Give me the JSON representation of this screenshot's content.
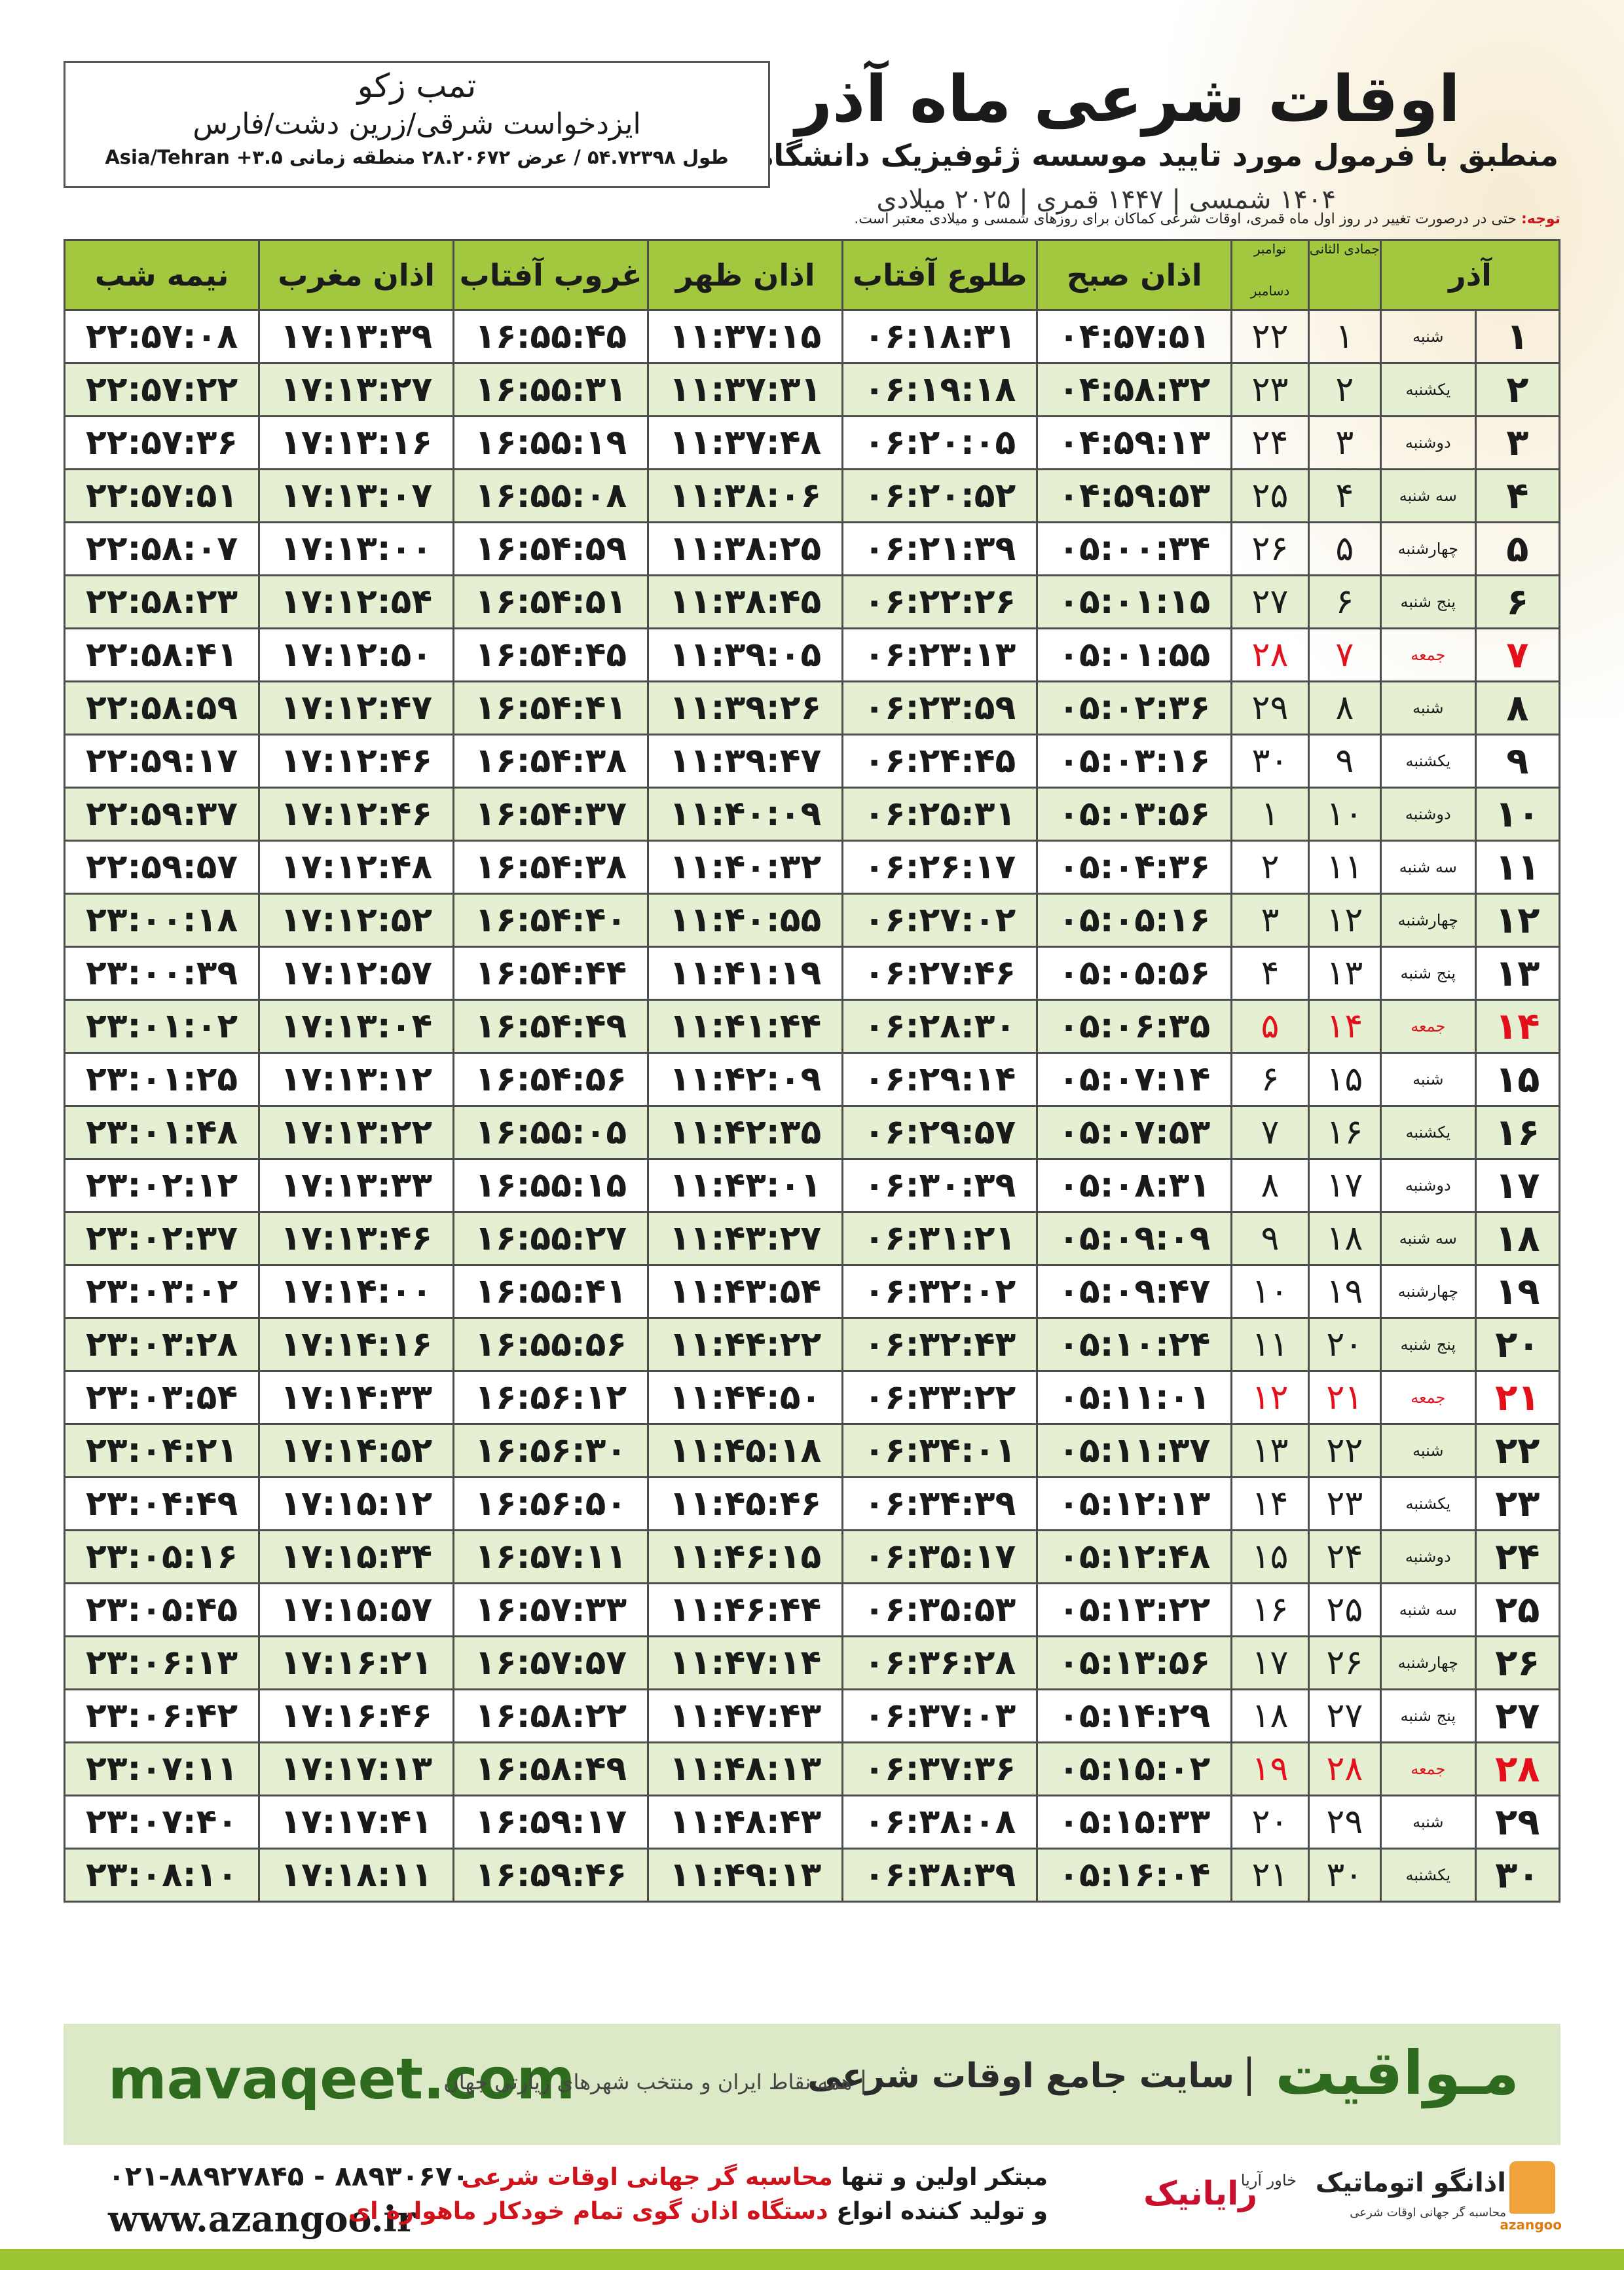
{
  "header": {
    "title": "اوقات شرعی ماه آذر",
    "subtitle": "منطبق با فرمول مورد تایید موسسه ژئوفیزیک دانشگاه تهران",
    "dates": "۱۴۰۴ شمسی | ۱۴۴۷ قمری | ۲۰۲۵ میلادی"
  },
  "location": {
    "name": "تمب زکو",
    "region": "ایزدخواست شرقی/زرین دشت/فارس",
    "coords": "طول ۵۴.۷۲۳۹۸ / عرض ۲۸.۲۰۶۷۲ منطقه زمانی ۳.۵+ Asia/Tehran"
  },
  "note": {
    "label": "توجه:",
    "text": "حتی در درصورت تغییر در روز اول ماه قمری، اوقات شرعی کماکان برای روزهای شمسی و میلادی معتبر است."
  },
  "table": {
    "columns": {
      "azar": "آذر",
      "jumada": "جمادی الثانی",
      "november": "نوامبر",
      "december": "دسامبر",
      "times": [
        "اذان صبح",
        "طلوع آفتاب",
        "اذان ظهر",
        "غروب آفتاب",
        "اذان مغرب",
        "نیمه شب"
      ]
    },
    "rows": [
      [
        "۱",
        "شنبه",
        "۱",
        "۲۲",
        "۰۴:۵۷:۵۱",
        "۰۶:۱۸:۳۱",
        "۱۱:۳۷:۱۵",
        "۱۶:۵۵:۴۵",
        "۱۷:۱۳:۳۹",
        "۲۲:۵۷:۰۸"
      ],
      [
        "۲",
        "یکشنبه",
        "۲",
        "۲۳",
        "۰۴:۵۸:۳۲",
        "۰۶:۱۹:۱۸",
        "۱۱:۳۷:۳۱",
        "۱۶:۵۵:۳۱",
        "۱۷:۱۳:۲۷",
        "۲۲:۵۷:۲۲"
      ],
      [
        "۳",
        "دوشنبه",
        "۳",
        "۲۴",
        "۰۴:۵۹:۱۳",
        "۰۶:۲۰:۰۵",
        "۱۱:۳۷:۴۸",
        "۱۶:۵۵:۱۹",
        "۱۷:۱۳:۱۶",
        "۲۲:۵۷:۳۶"
      ],
      [
        "۴",
        "سه شنبه",
        "۴",
        "۲۵",
        "۰۴:۵۹:۵۳",
        "۰۶:۲۰:۵۲",
        "۱۱:۳۸:۰۶",
        "۱۶:۵۵:۰۸",
        "۱۷:۱۳:۰۷",
        "۲۲:۵۷:۵۱"
      ],
      [
        "۵",
        "چهارشنبه",
        "۵",
        "۲۶",
        "۰۵:۰۰:۳۴",
        "۰۶:۲۱:۳۹",
        "۱۱:۳۸:۲۵",
        "۱۶:۵۴:۵۹",
        "۱۷:۱۳:۰۰",
        "۲۲:۵۸:۰۷"
      ],
      [
        "۶",
        "پنج شنبه",
        "۶",
        "۲۷",
        "۰۵:۰۱:۱۵",
        "۰۶:۲۲:۲۶",
        "۱۱:۳۸:۴۵",
        "۱۶:۵۴:۵۱",
        "۱۷:۱۲:۵۴",
        "۲۲:۵۸:۲۳"
      ],
      [
        "۷",
        "جمعه",
        "۷",
        "۲۸",
        "۰۵:۰۱:۵۵",
        "۰۶:۲۳:۱۳",
        "۱۱:۳۹:۰۵",
        "۱۶:۵۴:۴۵",
        "۱۷:۱۲:۵۰",
        "۲۲:۵۸:۴۱"
      ],
      [
        "۸",
        "شنبه",
        "۸",
        "۲۹",
        "۰۵:۰۲:۳۶",
        "۰۶:۲۳:۵۹",
        "۱۱:۳۹:۲۶",
        "۱۶:۵۴:۴۱",
        "۱۷:۱۲:۴۷",
        "۲۲:۵۸:۵۹"
      ],
      [
        "۹",
        "یکشنبه",
        "۹",
        "۳۰",
        "۰۵:۰۳:۱۶",
        "۰۶:۲۴:۴۵",
        "۱۱:۳۹:۴۷",
        "۱۶:۵۴:۳۸",
        "۱۷:۱۲:۴۶",
        "۲۲:۵۹:۱۷"
      ],
      [
        "۱۰",
        "دوشنبه",
        "۱۰",
        "۱",
        "۰۵:۰۳:۵۶",
        "۰۶:۲۵:۳۱",
        "۱۱:۴۰:۰۹",
        "۱۶:۵۴:۳۷",
        "۱۷:۱۲:۴۶",
        "۲۲:۵۹:۳۷"
      ],
      [
        "۱۱",
        "سه شنبه",
        "۱۱",
        "۲",
        "۰۵:۰۴:۳۶",
        "۰۶:۲۶:۱۷",
        "۱۱:۴۰:۳۲",
        "۱۶:۵۴:۳۸",
        "۱۷:۱۲:۴۸",
        "۲۲:۵۹:۵۷"
      ],
      [
        "۱۲",
        "چهارشنبه",
        "۱۲",
        "۳",
        "۰۵:۰۵:۱۶",
        "۰۶:۲۷:۰۲",
        "۱۱:۴۰:۵۵",
        "۱۶:۵۴:۴۰",
        "۱۷:۱۲:۵۲",
        "۲۳:۰۰:۱۸"
      ],
      [
        "۱۳",
        "پنج شنبه",
        "۱۳",
        "۴",
        "۰۵:۰۵:۵۶",
        "۰۶:۲۷:۴۶",
        "۱۱:۴۱:۱۹",
        "۱۶:۵۴:۴۴",
        "۱۷:۱۲:۵۷",
        "۲۳:۰۰:۳۹"
      ],
      [
        "۱۴",
        "جمعه",
        "۱۴",
        "۵",
        "۰۵:۰۶:۳۵",
        "۰۶:۲۸:۳۰",
        "۱۱:۴۱:۴۴",
        "۱۶:۵۴:۴۹",
        "۱۷:۱۳:۰۴",
        "۲۳:۰۱:۰۲"
      ],
      [
        "۱۵",
        "شنبه",
        "۱۵",
        "۶",
        "۰۵:۰۷:۱۴",
        "۰۶:۲۹:۱۴",
        "۱۱:۴۲:۰۹",
        "۱۶:۵۴:۵۶",
        "۱۷:۱۳:۱۲",
        "۲۳:۰۱:۲۵"
      ],
      [
        "۱۶",
        "یکشنبه",
        "۱۶",
        "۷",
        "۰۵:۰۷:۵۳",
        "۰۶:۲۹:۵۷",
        "۱۱:۴۲:۳۵",
        "۱۶:۵۵:۰۵",
        "۱۷:۱۳:۲۲",
        "۲۳:۰۱:۴۸"
      ],
      [
        "۱۷",
        "دوشنبه",
        "۱۷",
        "۸",
        "۰۵:۰۸:۳۱",
        "۰۶:۳۰:۳۹",
        "۱۱:۴۳:۰۱",
        "۱۶:۵۵:۱۵",
        "۱۷:۱۳:۳۳",
        "۲۳:۰۲:۱۲"
      ],
      [
        "۱۸",
        "سه شنبه",
        "۱۸",
        "۹",
        "۰۵:۰۹:۰۹",
        "۰۶:۳۱:۲۱",
        "۱۱:۴۳:۲۷",
        "۱۶:۵۵:۲۷",
        "۱۷:۱۳:۴۶",
        "۲۳:۰۲:۳۷"
      ],
      [
        "۱۹",
        "چهارشنبه",
        "۱۹",
        "۱۰",
        "۰۵:۰۹:۴۷",
        "۰۶:۳۲:۰۲",
        "۱۱:۴۳:۵۴",
        "۱۶:۵۵:۴۱",
        "۱۷:۱۴:۰۰",
        "۲۳:۰۳:۰۲"
      ],
      [
        "۲۰",
        "پنج شنبه",
        "۲۰",
        "۱۱",
        "۰۵:۱۰:۲۴",
        "۰۶:۳۲:۴۳",
        "۱۱:۴۴:۲۲",
        "۱۶:۵۵:۵۶",
        "۱۷:۱۴:۱۶",
        "۲۳:۰۳:۲۸"
      ],
      [
        "۲۱",
        "جمعه",
        "۲۱",
        "۱۲",
        "۰۵:۱۱:۰۱",
        "۰۶:۳۳:۲۲",
        "۱۱:۴۴:۵۰",
        "۱۶:۵۶:۱۲",
        "۱۷:۱۴:۳۳",
        "۲۳:۰۳:۵۴"
      ],
      [
        "۲۲",
        "شنبه",
        "۲۲",
        "۱۳",
        "۰۵:۱۱:۳۷",
        "۰۶:۳۴:۰۱",
        "۱۱:۴۵:۱۸",
        "۱۶:۵۶:۳۰",
        "۱۷:۱۴:۵۲",
        "۲۳:۰۴:۲۱"
      ],
      [
        "۲۳",
        "یکشنبه",
        "۲۳",
        "۱۴",
        "۰۵:۱۲:۱۳",
        "۰۶:۳۴:۳۹",
        "۱۱:۴۵:۴۶",
        "۱۶:۵۶:۵۰",
        "۱۷:۱۵:۱۲",
        "۲۳:۰۴:۴۹"
      ],
      [
        "۲۴",
        "دوشنبه",
        "۲۴",
        "۱۵",
        "۰۵:۱۲:۴۸",
        "۰۶:۳۵:۱۷",
        "۱۱:۴۶:۱۵",
        "۱۶:۵۷:۱۱",
        "۱۷:۱۵:۳۴",
        "۲۳:۰۵:۱۶"
      ],
      [
        "۲۵",
        "سه شنبه",
        "۲۵",
        "۱۶",
        "۰۵:۱۳:۲۲",
        "۰۶:۳۵:۵۳",
        "۱۱:۴۶:۴۴",
        "۱۶:۵۷:۳۳",
        "۱۷:۱۵:۵۷",
        "۲۳:۰۵:۴۵"
      ],
      [
        "۲۶",
        "چهارشنبه",
        "۲۶",
        "۱۷",
        "۰۵:۱۳:۵۶",
        "۰۶:۳۶:۲۸",
        "۱۱:۴۷:۱۴",
        "۱۶:۵۷:۵۷",
        "۱۷:۱۶:۲۱",
        "۲۳:۰۶:۱۳"
      ],
      [
        "۲۷",
        "پنج شنبه",
        "۲۷",
        "۱۸",
        "۰۵:۱۴:۲۹",
        "۰۶:۳۷:۰۳",
        "۱۱:۴۷:۴۳",
        "۱۶:۵۸:۲۲",
        "۱۷:۱۶:۴۶",
        "۲۳:۰۶:۴۲"
      ],
      [
        "۲۸",
        "جمعه",
        "۲۸",
        "۱۹",
        "۰۵:۱۵:۰۲",
        "۰۶:۳۷:۳۶",
        "۱۱:۴۸:۱۳",
        "۱۶:۵۸:۴۹",
        "۱۷:۱۷:۱۳",
        "۲۳:۰۷:۱۱"
      ],
      [
        "۲۹",
        "شنبه",
        "۲۹",
        "۲۰",
        "۰۵:۱۵:۳۳",
        "۰۶:۳۸:۰۸",
        "۱۱:۴۸:۴۳",
        "۱۶:۵۹:۱۷",
        "۱۷:۱۷:۴۱",
        "۲۳:۰۷:۴۰"
      ],
      [
        "۳۰",
        "یکشنبه",
        "۳۰",
        "۲۱",
        "۰۵:۱۶:۰۴",
        "۰۶:۳۸:۳۹",
        "۱۱:۴۹:۱۳",
        "۱۶:۵۹:۴۶",
        "۱۷:۱۸:۱۱",
        "۲۳:۰۸:۱۰"
      ]
    ]
  },
  "footer": {
    "site_url": "mavaqeet.com",
    "site_name": "مـواقیت",
    "site_tagline": "سایت جامع اوقات شرعی",
    "site_subtitle": "همه نقاط ایران و منتخب شهرهای زیارتی جهان",
    "phones": "۰۲۱-۸۸۹۲۷۸۴۵ - ۸۸۹۳۰۶۷۰",
    "web": "www.azangoo.ir",
    "line1_start": "مبتکر اولین و تنها ",
    "line1_highlight": "محاسبه گر جهانی اوقات شرعی",
    "line2_start": "و تولید کننده انواع ",
    "line2_highlight": "دستگاه اذان گوی تمام خودکار ماهواره ای",
    "logo_rayanik": "رایانیک",
    "logo_khavar": "خاور آریا",
    "logo_azangoo": "اذانگو اتوماتیک",
    "logo_azangoo_sub": "محاسبه گر جهانی اوقات شرعی",
    "logo_latin": "azangoo"
  }
}
